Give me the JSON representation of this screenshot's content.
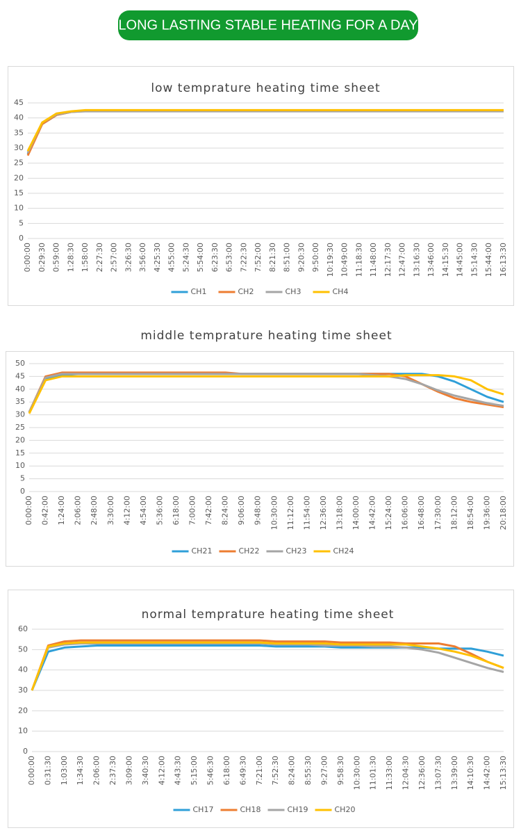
{
  "banner": "LONG LASTING  STABLE HEATING FOR A DAY",
  "chart_data": [
    {
      "type": "line",
      "title": "low temprature heating time sheet",
      "grid": true,
      "legend": "bottom",
      "ylim": [
        0,
        45
      ],
      "yticks": [
        0,
        5,
        10,
        15,
        20,
        25,
        30,
        35,
        40,
        45
      ],
      "categories": [
        "0:00:00",
        "0:29:30",
        "0:59:00",
        "1:28:30",
        "1:58:00",
        "2:27:30",
        "2:57:00",
        "3:26:30",
        "3:56:00",
        "4:25:30",
        "4:55:00",
        "5:24:30",
        "5:54:00",
        "6:23:30",
        "6:53:00",
        "7:22:30",
        "7:52:00",
        "8:21:30",
        "8:51:00",
        "9:20:30",
        "9:50:00",
        "10:19:30",
        "10:49:00",
        "11:18:30",
        "11:48:00",
        "12:17:30",
        "12:47:00",
        "13:16:30",
        "13:46:00",
        "14:15:30",
        "14:45:00",
        "15:14:30",
        "15:44:00",
        "16:13:30"
      ],
      "series": [
        {
          "name": "CH1",
          "color": "#2f9fd8",
          "values": [
            28,
            38,
            41,
            42,
            42.5,
            42.5,
            42.5,
            42.5,
            42.5,
            42.5,
            42.5,
            42.5,
            42.5,
            42.5,
            42.5,
            42.5,
            42.5,
            42.5,
            42.5,
            42.5,
            42.5,
            42.5,
            42.5,
            42.5,
            42.5,
            42.5,
            42.5,
            42.5,
            42.5,
            42.5,
            42.5,
            42.5,
            42.5,
            42.5
          ]
        },
        {
          "name": "CH2",
          "color": "#ed7d31",
          "values": [
            27.5,
            38,
            41,
            42,
            42.3,
            42.3,
            42.3,
            42.3,
            42.3,
            42.3,
            42.3,
            42.3,
            42.3,
            42.3,
            42.3,
            42.3,
            42.3,
            42.3,
            42.3,
            42.3,
            42.3,
            42.3,
            42.3,
            42.3,
            42.3,
            42.3,
            42.3,
            42.3,
            42.3,
            42.3,
            42.3,
            42.3,
            42.3,
            42.3
          ]
        },
        {
          "name": "CH3",
          "color": "#a5a5a5",
          "values": [
            28.5,
            38.5,
            41.2,
            42,
            42.2,
            42.2,
            42.2,
            42.2,
            42.2,
            42.2,
            42.2,
            42.2,
            42.2,
            42.2,
            42.2,
            42.2,
            42.2,
            42.2,
            42.2,
            42.2,
            42.2,
            42.2,
            42.2,
            42.2,
            42.2,
            42.2,
            42.2,
            42.2,
            42.2,
            42.2,
            42.2,
            42.2,
            42.2,
            42.2
          ]
        },
        {
          "name": "CH4",
          "color": "#ffc000",
          "values": [
            29,
            38.5,
            41.5,
            42.2,
            42.6,
            42.6,
            42.6,
            42.6,
            42.6,
            42.6,
            42.6,
            42.6,
            42.6,
            42.6,
            42.6,
            42.6,
            42.6,
            42.6,
            42.6,
            42.6,
            42.6,
            42.6,
            42.6,
            42.6,
            42.6,
            42.6,
            42.6,
            42.6,
            42.6,
            42.6,
            42.6,
            42.6,
            42.6,
            42.6
          ]
        }
      ]
    },
    {
      "type": "line",
      "title": "middle temprature heating time sheet",
      "grid": true,
      "legend": "bottom",
      "ylim": [
        0,
        50
      ],
      "yticks": [
        0,
        5,
        10,
        15,
        20,
        25,
        30,
        35,
        40,
        45,
        50
      ],
      "categories": [
        "0:00:00",
        "0:42:00",
        "1:24:00",
        "2:06:00",
        "2:48:00",
        "3:30:00",
        "4:12:00",
        "4:54:00",
        "5:36:00",
        "6:18:00",
        "7:00:00",
        "7:42:00",
        "8:24:00",
        "9:06:00",
        "9:48:00",
        "10:30:00",
        "11:12:00",
        "11:54:00",
        "12:36:00",
        "13:18:00",
        "14:00:00",
        "14:42:00",
        "15:24:00",
        "16:06:00",
        "16:48:00",
        "17:30:00",
        "18:12:00",
        "18:54:00",
        "19:36:00",
        "20:18:00"
      ],
      "series": [
        {
          "name": "CH21",
          "color": "#2f9fd8",
          "values": [
            31,
            44,
            45.5,
            46,
            46,
            46,
            46,
            46,
            46,
            46,
            46,
            46,
            46,
            46,
            46,
            46,
            46,
            46,
            46,
            46,
            46,
            46,
            46,
            46,
            46,
            45,
            43,
            40,
            37,
            35
          ]
        },
        {
          "name": "CH22",
          "color": "#ed7d31",
          "values": [
            31,
            45,
            46.5,
            46.5,
            46.5,
            46.5,
            46.5,
            46.5,
            46.5,
            46.5,
            46.5,
            46.5,
            46.5,
            46,
            46,
            46,
            46,
            46,
            46,
            46,
            46,
            46,
            46,
            45,
            42,
            39,
            36.5,
            35,
            34,
            33
          ]
        },
        {
          "name": "CH23",
          "color": "#a5a5a5",
          "values": [
            31,
            44.5,
            46,
            46,
            46,
            46,
            46,
            46,
            46,
            46,
            46,
            46,
            46,
            46,
            46,
            46,
            46,
            46,
            46,
            46,
            46,
            45.5,
            45,
            44,
            42,
            39.5,
            37.5,
            36,
            34.5,
            33.5
          ]
        },
        {
          "name": "CH24",
          "color": "#ffc000",
          "values": [
            30.5,
            43.5,
            45,
            45,
            45,
            45,
            45,
            45,
            45,
            45,
            45,
            45,
            45,
            45,
            45,
            45,
            45,
            45,
            45,
            45,
            45,
            45,
            45,
            45.5,
            45.5,
            45.5,
            45,
            43.5,
            40,
            38
          ]
        }
      ]
    },
    {
      "type": "line",
      "title": "normal temprature heating time sheet",
      "grid": true,
      "legend": "bottom",
      "ylim": [
        0,
        60
      ],
      "yticks": [
        0,
        10,
        20,
        30,
        40,
        50,
        60
      ],
      "categories": [
        "0:00:00",
        "0:31:30",
        "1:03:00",
        "1:34:30",
        "2:06:00",
        "2:37:30",
        "3:09:00",
        "3:40:30",
        "4:12:00",
        "4:43:30",
        "5:15:00",
        "5:46:30",
        "6:18:00",
        "6:49:30",
        "7:21:00",
        "7:52:30",
        "8:24:00",
        "8:55:30",
        "9:27:00",
        "9:58:30",
        "10:30:00",
        "11:01:30",
        "11:33:00",
        "12:04:30",
        "12:36:00",
        "13:07:30",
        "13:39:00",
        "14:10:30",
        "14:42:00",
        "15:13:30"
      ],
      "series": [
        {
          "name": "CH17",
          "color": "#2f9fd8",
          "values": [
            30,
            49,
            51,
            51.5,
            52,
            52,
            52,
            52,
            52,
            52,
            52,
            52,
            52,
            52,
            52,
            51.5,
            51.5,
            51.5,
            51.5,
            51,
            51,
            51,
            51,
            51,
            51,
            50.5,
            50.5,
            50.5,
            49,
            47
          ]
        },
        {
          "name": "CH18",
          "color": "#ed7d31",
          "values": [
            30,
            52,
            54,
            54.5,
            54.5,
            54.5,
            54.5,
            54.5,
            54.5,
            54.5,
            54.5,
            54.5,
            54.5,
            54.5,
            54.5,
            54,
            54,
            54,
            54,
            53.5,
            53.5,
            53.5,
            53.5,
            53,
            53,
            53,
            51.5,
            48,
            44,
            41
          ]
        },
        {
          "name": "CH19",
          "color": "#a5a5a5",
          "values": [
            30,
            51,
            52.5,
            53,
            53,
            53,
            53,
            53,
            53,
            53,
            53,
            53,
            53,
            53,
            53,
            52.5,
            52.5,
            52.5,
            52,
            52,
            52,
            51.5,
            51.5,
            51,
            50,
            48.5,
            46,
            43.5,
            41,
            39
          ]
        },
        {
          "name": "CH20",
          "color": "#ffc000",
          "values": [
            30,
            51.5,
            53,
            53.5,
            53.5,
            53.5,
            53.5,
            53.5,
            53.5,
            53.5,
            53.5,
            53.5,
            53.5,
            53.5,
            53.5,
            53,
            53,
            53,
            53,
            52.5,
            52.5,
            52.5,
            52.5,
            52.5,
            51.5,
            50.5,
            49,
            47,
            44,
            41
          ]
        }
      ]
    }
  ]
}
